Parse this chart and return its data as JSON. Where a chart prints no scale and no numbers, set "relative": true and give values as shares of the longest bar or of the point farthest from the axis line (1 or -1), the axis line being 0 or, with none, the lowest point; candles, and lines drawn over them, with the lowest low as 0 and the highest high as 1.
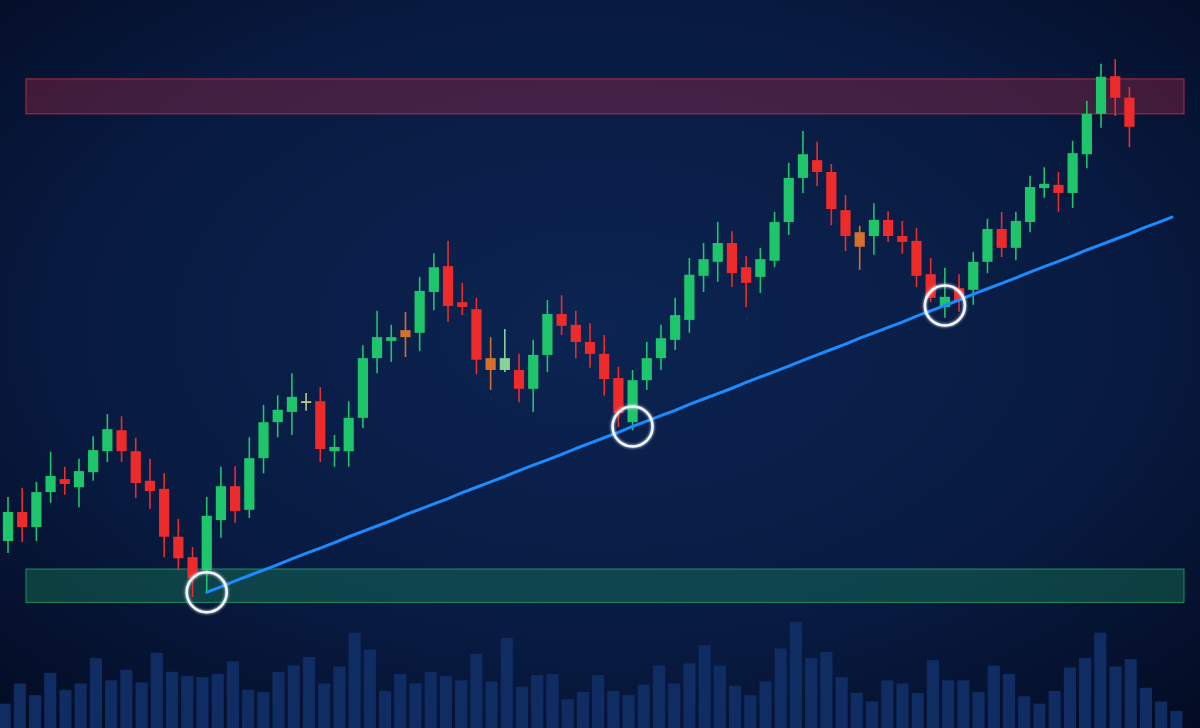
{
  "chart_data": [
    {
      "type": "candlestick",
      "relative": true,
      "categories": [
        null,
        null,
        null,
        null,
        null,
        null,
        null,
        null,
        null,
        null,
        null,
        null,
        null,
        null,
        null,
        null,
        null,
        null,
        null,
        null,
        null,
        null,
        null,
        null,
        null,
        null,
        null,
        null,
        null,
        null,
        null,
        null,
        null,
        null,
        null,
        null,
        null,
        null,
        null,
        null,
        null,
        null,
        null,
        null,
        null,
        null,
        null,
        null,
        null,
        null,
        null,
        null,
        null,
        null,
        null,
        null,
        null,
        null,
        null,
        null,
        null,
        null,
        null,
        null,
        null,
        null,
        null,
        null,
        null,
        null,
        null,
        null,
        null,
        null,
        null,
        null,
        null,
        null,
        null,
        null,
        null,
        null,
        null
      ],
      "ohlc": [
        [
          0.104,
          0.186,
          0.082,
          0.158
        ],
        [
          0.158,
          0.203,
          0.102,
          0.13
        ],
        [
          0.13,
          0.214,
          0.104,
          0.195
        ],
        [
          0.195,
          0.27,
          0.175,
          0.225
        ],
        [
          0.219,
          0.242,
          0.19,
          0.21
        ],
        [
          0.204,
          0.257,
          0.167,
          0.234
        ],
        [
          0.232,
          0.299,
          0.216,
          0.273
        ],
        [
          0.271,
          0.34,
          0.251,
          0.312
        ],
        [
          0.31,
          0.336,
          0.251,
          0.271
        ],
        [
          0.271,
          0.296,
          0.184,
          0.212
        ],
        [
          0.216,
          0.257,
          0.164,
          0.197
        ],
        [
          0.201,
          0.23,
          0.074,
          0.112
        ],
        [
          0.112,
          0.145,
          0.05,
          0.072
        ],
        [
          0.074,
          0.093,
          0,
          0.035
        ],
        [
          0.05,
          0.186,
          0.007,
          0.151
        ],
        [
          0.143,
          0.242,
          0.11,
          0.206
        ],
        [
          0.206,
          0.243,
          0.138,
          0.16
        ],
        [
          0.162,
          0.297,
          0.147,
          0.258
        ],
        [
          0.258,
          0.357,
          0.23,
          0.325
        ],
        [
          0.325,
          0.375,
          0.297,
          0.348
        ],
        [
          0.344,
          0.416,
          0.301,
          0.372
        ],
        [
          0.361,
          0.379,
          0.346,
          0.364
        ],
        [
          0.364,
          0.39,
          0.251,
          0.275
        ],
        [
          0.271,
          0.301,
          0.242,
          0.279
        ],
        [
          0.271,
          0.364,
          0.242,
          0.333
        ],
        [
          0.333,
          0.468,
          0.314,
          0.444
        ],
        [
          0.444,
          0.532,
          0.416,
          0.483
        ],
        [
          0.476,
          0.506,
          0.437,
          0.483
        ],
        [
          0.496,
          0.53,
          0.446,
          0.483
        ],
        [
          0.491,
          0.595,
          0.457,
          0.569
        ],
        [
          0.567,
          0.639,
          0.533,
          0.613
        ],
        [
          0.615,
          0.662,
          0.511,
          0.541
        ],
        [
          0.548,
          0.584,
          0.524,
          0.539
        ],
        [
          0.535,
          0.556,
          0.414,
          0.441
        ],
        [
          0.444,
          0.483,
          0.385,
          0.422
        ],
        [
          0.422,
          0.498,
          0.418,
          0.444
        ],
        [
          0.422,
          0.452,
          0.362,
          0.387
        ],
        [
          0.387,
          0.478,
          0.344,
          0.45
        ],
        [
          0.45,
          0.552,
          0.418,
          0.526
        ],
        [
          0.526,
          0.561,
          0.487,
          0.504
        ],
        [
          0.506,
          0.532,
          0.444,
          0.474
        ],
        [
          0.474,
          0.509,
          0.426,
          0.452
        ],
        [
          0.452,
          0.487,
          0.374,
          0.405
        ],
        [
          0.407,
          0.428,
          0.316,
          0.342
        ],
        [
          0.325,
          0.422,
          0.31,
          0.403
        ],
        [
          0.403,
          0.474,
          0.385,
          0.444
        ],
        [
          0.444,
          0.506,
          0.422,
          0.481
        ],
        [
          0.478,
          0.556,
          0.459,
          0.524
        ],
        [
          0.515,
          0.63,
          0.491,
          0.599
        ],
        [
          0.597,
          0.658,
          0.567,
          0.628
        ],
        [
          0.623,
          0.697,
          0.586,
          0.658
        ],
        [
          0.658,
          0.68,
          0.576,
          0.602
        ],
        [
          0.613,
          0.634,
          0.539,
          0.584
        ],
        [
          0.595,
          0.649,
          0.565,
          0.628
        ],
        [
          0.625,
          0.716,
          0.613,
          0.697
        ],
        [
          0.697,
          0.807,
          0.673,
          0.779
        ],
        [
          0.779,
          0.866,
          0.751,
          0.823
        ],
        [
          0.812,
          0.846,
          0.764,
          0.79
        ],
        [
          0.79,
          0.805,
          0.691,
          0.721
        ],
        [
          0.719,
          0.747,
          0.643,
          0.671
        ],
        [
          0.678,
          0.69,
          0.608,
          0.651
        ],
        [
          0.671,
          0.732,
          0.636,
          0.701
        ],
        [
          0.701,
          0.717,
          0.66,
          0.671
        ],
        [
          0.671,
          0.699,
          0.638,
          0.66
        ],
        [
          0.662,
          0.686,
          0.576,
          0.597
        ],
        [
          0.6,
          0.63,
          0.548,
          0.556
        ],
        [
          0.539,
          0.612,
          0.519,
          0.558
        ],
        [
          0.574,
          0.6,
          0.53,
          0.552
        ],
        [
          0.571,
          0.641,
          0.543,
          0.623
        ],
        [
          0.623,
          0.703,
          0.602,
          0.684
        ],
        [
          0.684,
          0.716,
          0.632,
          0.649
        ],
        [
          0.649,
          0.716,
          0.626,
          0.699
        ],
        [
          0.697,
          0.783,
          0.678,
          0.762
        ],
        [
          0.76,
          0.799,
          0.742,
          0.768
        ],
        [
          0.766,
          0.79,
          0.716,
          0.751
        ],
        [
          0.751,
          0.848,
          0.723,
          0.825
        ],
        [
          0.823,
          0.922,
          0.797,
          0.898
        ],
        [
          0.898,
          0.991,
          0.872,
          0.967
        ],
        [
          0.968,
          1,
          0.894,
          0.928
        ],
        [
          0.928,
          0.948,
          0.836,
          0.874
        ],
        null,
        null,
        null
      ],
      "colors": [
        "#1fc56b",
        "#ee2b2b",
        "#1fc56b",
        "#1fc56b",
        "#ee2b2b",
        "#1fc56b",
        "#1fc56b",
        "#1fc56b",
        "#ee2b2b",
        "#ee2b2b",
        "#ee2b2b",
        "#ee2b2b",
        "#ee2b2b",
        "#ee2b2b",
        "#1fc56b",
        "#1fc56b",
        "#ee2b2b",
        "#1fc56b",
        "#1fc56b",
        "#1fc56b",
        "#1fc56b",
        "#c2c88c",
        "#ee2b2b",
        "#1fc56b",
        "#1fc56b",
        "#1fc56b",
        "#1fc56b",
        "#1fc56b",
        "#d4702e",
        "#1fc56b",
        "#1fc56b",
        "#ee2b2b",
        "#ee2b2b",
        "#ee2b2b",
        "#d4702e",
        "#86d39a",
        "#ee2b2b",
        "#1fc56b",
        "#1fc56b",
        "#ee2b2b",
        "#ee2b2b",
        "#ee2b2b",
        "#ee2b2b",
        "#ee2b2b",
        "#1fc56b",
        "#1fc56b",
        "#1fc56b",
        "#1fc56b",
        "#1fc56b",
        "#1fc56b",
        "#1fc56b",
        "#ee2b2b",
        "#ee2b2b",
        "#1fc56b",
        "#1fc56b",
        "#1fc56b",
        "#1fc56b",
        "#ee2b2b",
        "#ee2b2b",
        "#ee2b2b",
        "#d4702e",
        "#1fc56b",
        "#ee2b2b",
        "#ee2b2b",
        "#ee2b2b",
        "#ee2b2b",
        "#1fc56b",
        "#ee2b2b",
        "#1fc56b",
        "#1fc56b",
        "#ee2b2b",
        "#1fc56b",
        "#1fc56b",
        "#1fc56b",
        "#ee2b2b",
        "#1fc56b",
        "#1fc56b",
        "#1fc56b",
        "#ee2b2b",
        "#ee2b2b",
        null,
        null,
        null
      ],
      "series": [
        {
          "type": "line",
          "color": "#1a8cff",
          "values": [
            null,
            null,
            null,
            null,
            null,
            null,
            null,
            null,
            null,
            null,
            null,
            null,
            null,
            null,
            0.009,
            0.019,
            0.03,
            0.04,
            0.05,
            0.06,
            0.071,
            0.081,
            0.091,
            0.101,
            0.112,
            0.122,
            0.132,
            0.142,
            0.153,
            0.163,
            0.173,
            0.183,
            0.194,
            0.204,
            0.214,
            0.224,
            0.235,
            0.245,
            0.255,
            0.265,
            0.276,
            0.286,
            0.296,
            0.306,
            0.317,
            0.327,
            0.337,
            0.347,
            0.358,
            0.368,
            0.378,
            0.388,
            0.399,
            0.409,
            0.419,
            0.429,
            0.44,
            0.45,
            0.46,
            0.47,
            0.481,
            0.491,
            0.501,
            0.511,
            0.522,
            0.532,
            0.542,
            0.552,
            0.563,
            0.573,
            0.583,
            0.593,
            0.604,
            0.614,
            0.624,
            0.634,
            0.645,
            0.655,
            0.665,
            0.675,
            0.686,
            0.696,
            0.706
          ]
        }
      ],
      "bands": [
        {
          "axis": "y",
          "from": 0.898,
          "to": 0.963,
          "color": "#c8304a"
        },
        {
          "axis": "y",
          "from": -0.01,
          "to": 0.052,
          "color": "#1fa463"
        }
      ]
    },
    {
      "type": "bar",
      "relative": true,
      "categories": [
        null,
        null,
        null,
        null,
        null,
        null,
        null,
        null,
        null,
        null,
        null,
        null,
        null,
        null,
        null,
        null,
        null,
        null,
        null,
        null,
        null,
        null,
        null,
        null,
        null,
        null,
        null,
        null,
        null,
        null,
        null,
        null,
        null,
        null,
        null,
        null,
        null,
        null,
        null,
        null,
        null,
        null,
        null,
        null,
        null,
        null,
        null,
        null,
        null,
        null,
        null,
        null,
        null,
        null,
        null,
        null,
        null,
        null,
        null,
        null,
        null,
        null,
        null,
        null,
        null,
        null,
        null,
        null,
        null,
        null,
        null,
        null,
        null,
        null,
        null,
        null,
        null,
        null
      ],
      "values": [
        0.23,
        0.42,
        0.31,
        0.52,
        0.36,
        0.42,
        0.66,
        0.45,
        0.55,
        0.43,
        0.71,
        0.53,
        0.49,
        0.48,
        0.51,
        0.63,
        0.36,
        0.34,
        0.53,
        0.59,
        0.67,
        0.42,
        0.58,
        0.9,
        0.74,
        0.35,
        0.51,
        0.42,
        0.53,
        0.49,
        0.45,
        0.7,
        0.44,
        0.85,
        0.39,
        0.5,
        0.51,
        0.27,
        0.34,
        0.5,
        0.35,
        0.31,
        0.41,
        0.59,
        0.42,
        0.61,
        0.78,
        0.59,
        0.4,
        0.31,
        0.44,
        0.75,
        1,
        0.66,
        0.72,
        0.48,
        0.33,
        0.25,
        0.45,
        0.42,
        0.33,
        0.64,
        0.45,
        0.45,
        0.34,
        0.59,
        0.51,
        0.3,
        0.23,
        0.35,
        0.57,
        0.66,
        0.9,
        0.58,
        0.65,
        0.38,
        0.25,
        0.16
      ],
      "color": "#0f2c63"
    }
  ]
}
